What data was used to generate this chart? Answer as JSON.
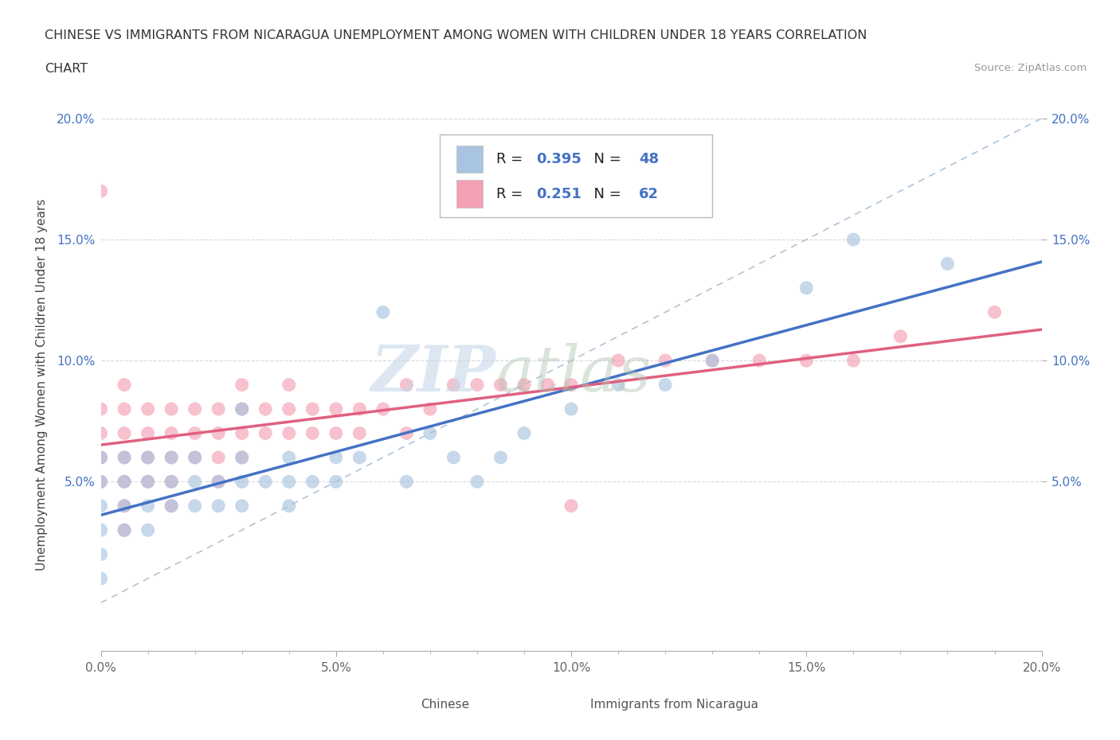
{
  "title_line1": "CHINESE VS IMMIGRANTS FROM NICARAGUA UNEMPLOYMENT AMONG WOMEN WITH CHILDREN UNDER 18 YEARS CORRELATION",
  "title_line2": "CHART",
  "source": "Source: ZipAtlas.com",
  "ylabel": "Unemployment Among Women with Children Under 18 years",
  "xmin": 0.0,
  "xmax": 0.2,
  "ymin": -0.02,
  "ymax": 0.2,
  "xtick_labels": [
    "0.0%",
    "",
    "",
    "",
    "",
    "5.0%",
    "",
    "",
    "",
    "",
    "10.0%",
    "",
    "",
    "",
    "",
    "15.0%",
    "",
    "",
    "",
    "",
    "20.0%"
  ],
  "xtick_vals": [
    0.0,
    0.01,
    0.02,
    0.03,
    0.04,
    0.05,
    0.06,
    0.07,
    0.08,
    0.09,
    0.1,
    0.11,
    0.12,
    0.13,
    0.14,
    0.15,
    0.16,
    0.17,
    0.18,
    0.19,
    0.2
  ],
  "ytick_labels": [
    "5.0%",
    "10.0%",
    "15.0%",
    "20.0%"
  ],
  "ytick_vals": [
    0.05,
    0.1,
    0.15,
    0.2
  ],
  "chinese_color": "#a8c4e0",
  "nicaragua_color": "#f4a0b4",
  "chinese_R": 0.395,
  "chinese_N": 48,
  "nicaragua_R": 0.251,
  "nicaragua_N": 62,
  "chinese_line_color": "#4472c4",
  "nicaragua_line_color": "#e06080",
  "diagonal_color": "#b0c4d8",
  "watermark_part1": "ZIP",
  "watermark_part2": "atlas",
  "grid_color": "#d8d8d8",
  "chinese_scatter_x": [
    0.0,
    0.0,
    0.0,
    0.0,
    0.0,
    0.0,
    0.005,
    0.005,
    0.005,
    0.005,
    0.01,
    0.01,
    0.01,
    0.01,
    0.015,
    0.015,
    0.015,
    0.02,
    0.02,
    0.02,
    0.025,
    0.025,
    0.03,
    0.03,
    0.03,
    0.03,
    0.035,
    0.04,
    0.04,
    0.04,
    0.045,
    0.05,
    0.05,
    0.055,
    0.06,
    0.065,
    0.07,
    0.075,
    0.08,
    0.085,
    0.09,
    0.1,
    0.11,
    0.12,
    0.13,
    0.15,
    0.16,
    0.18
  ],
  "chinese_scatter_y": [
    0.06,
    0.05,
    0.04,
    0.03,
    0.02,
    0.01,
    0.06,
    0.05,
    0.04,
    0.03,
    0.06,
    0.05,
    0.04,
    0.03,
    0.06,
    0.05,
    0.04,
    0.06,
    0.05,
    0.04,
    0.05,
    0.04,
    0.08,
    0.06,
    0.05,
    0.04,
    0.05,
    0.06,
    0.05,
    0.04,
    0.05,
    0.06,
    0.05,
    0.06,
    0.12,
    0.05,
    0.07,
    0.06,
    0.05,
    0.06,
    0.07,
    0.08,
    0.09,
    0.09,
    0.1,
    0.13,
    0.15,
    0.14
  ],
  "nicaragua_scatter_x": [
    0.0,
    0.0,
    0.0,
    0.0,
    0.0,
    0.005,
    0.005,
    0.005,
    0.005,
    0.005,
    0.005,
    0.005,
    0.01,
    0.01,
    0.01,
    0.01,
    0.015,
    0.015,
    0.015,
    0.015,
    0.015,
    0.02,
    0.02,
    0.02,
    0.025,
    0.025,
    0.025,
    0.025,
    0.03,
    0.03,
    0.03,
    0.03,
    0.035,
    0.035,
    0.04,
    0.04,
    0.04,
    0.045,
    0.045,
    0.05,
    0.05,
    0.055,
    0.055,
    0.06,
    0.065,
    0.065,
    0.07,
    0.075,
    0.08,
    0.085,
    0.09,
    0.095,
    0.1,
    0.1,
    0.11,
    0.12,
    0.13,
    0.14,
    0.15,
    0.16,
    0.17,
    0.19
  ],
  "nicaragua_scatter_y": [
    0.08,
    0.07,
    0.06,
    0.05,
    0.17,
    0.09,
    0.08,
    0.07,
    0.06,
    0.05,
    0.04,
    0.03,
    0.08,
    0.07,
    0.06,
    0.05,
    0.08,
    0.07,
    0.06,
    0.05,
    0.04,
    0.08,
    0.07,
    0.06,
    0.08,
    0.07,
    0.06,
    0.05,
    0.09,
    0.08,
    0.07,
    0.06,
    0.08,
    0.07,
    0.09,
    0.08,
    0.07,
    0.08,
    0.07,
    0.08,
    0.07,
    0.08,
    0.07,
    0.08,
    0.09,
    0.07,
    0.08,
    0.09,
    0.09,
    0.09,
    0.09,
    0.09,
    0.04,
    0.09,
    0.1,
    0.1,
    0.1,
    0.1,
    0.1,
    0.1,
    0.11,
    0.12
  ]
}
